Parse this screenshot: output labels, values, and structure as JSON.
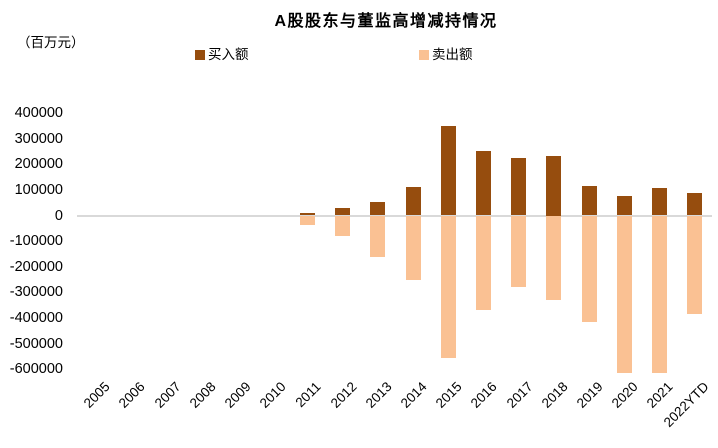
{
  "header": {
    "title": "A股股东与董监高增减持情况",
    "unit_label": "（百万元）"
  },
  "chart_data": {
    "type": "bar",
    "title": "A股股东与董监高增减持情况",
    "unit_label": "（百万元）",
    "categories": [
      "2005",
      "2006",
      "2007",
      "2008",
      "2009",
      "2010",
      "2011",
      "2012",
      "2013",
      "2014",
      "2015",
      "2016",
      "2017",
      "2018",
      "2019",
      "2020",
      "2021",
      "2022YTD"
    ],
    "series": [
      {
        "name": "买入额",
        "color": "#964D0E",
        "values": [
          0,
          0,
          0,
          0,
          0,
          0,
          10000,
          30000,
          54000,
          112000,
          350000,
          252000,
          224000,
          234000,
          116000,
          77000,
          107000,
          87000
        ]
      },
      {
        "name": "卖出额",
        "color": "#FAC193",
        "values": [
          0,
          0,
          0,
          0,
          0,
          0,
          -36000,
          -80000,
          -163000,
          -250000,
          -556000,
          -370000,
          -280000,
          -331000,
          -414000,
          -616000,
          -616000,
          -383000
        ]
      }
    ],
    "yticks": [
      400000,
      300000,
      200000,
      100000,
      0,
      -100000,
      -200000,
      -300000,
      -400000,
      -500000,
      -600000
    ],
    "ylim": [
      -650000,
      400000
    ],
    "xlabel": "",
    "ylabel": "百万元",
    "grid": "zero-line-only",
    "legend_position": "top",
    "zero_line_color": "#D9D9D9",
    "text_color": "#000000"
  }
}
